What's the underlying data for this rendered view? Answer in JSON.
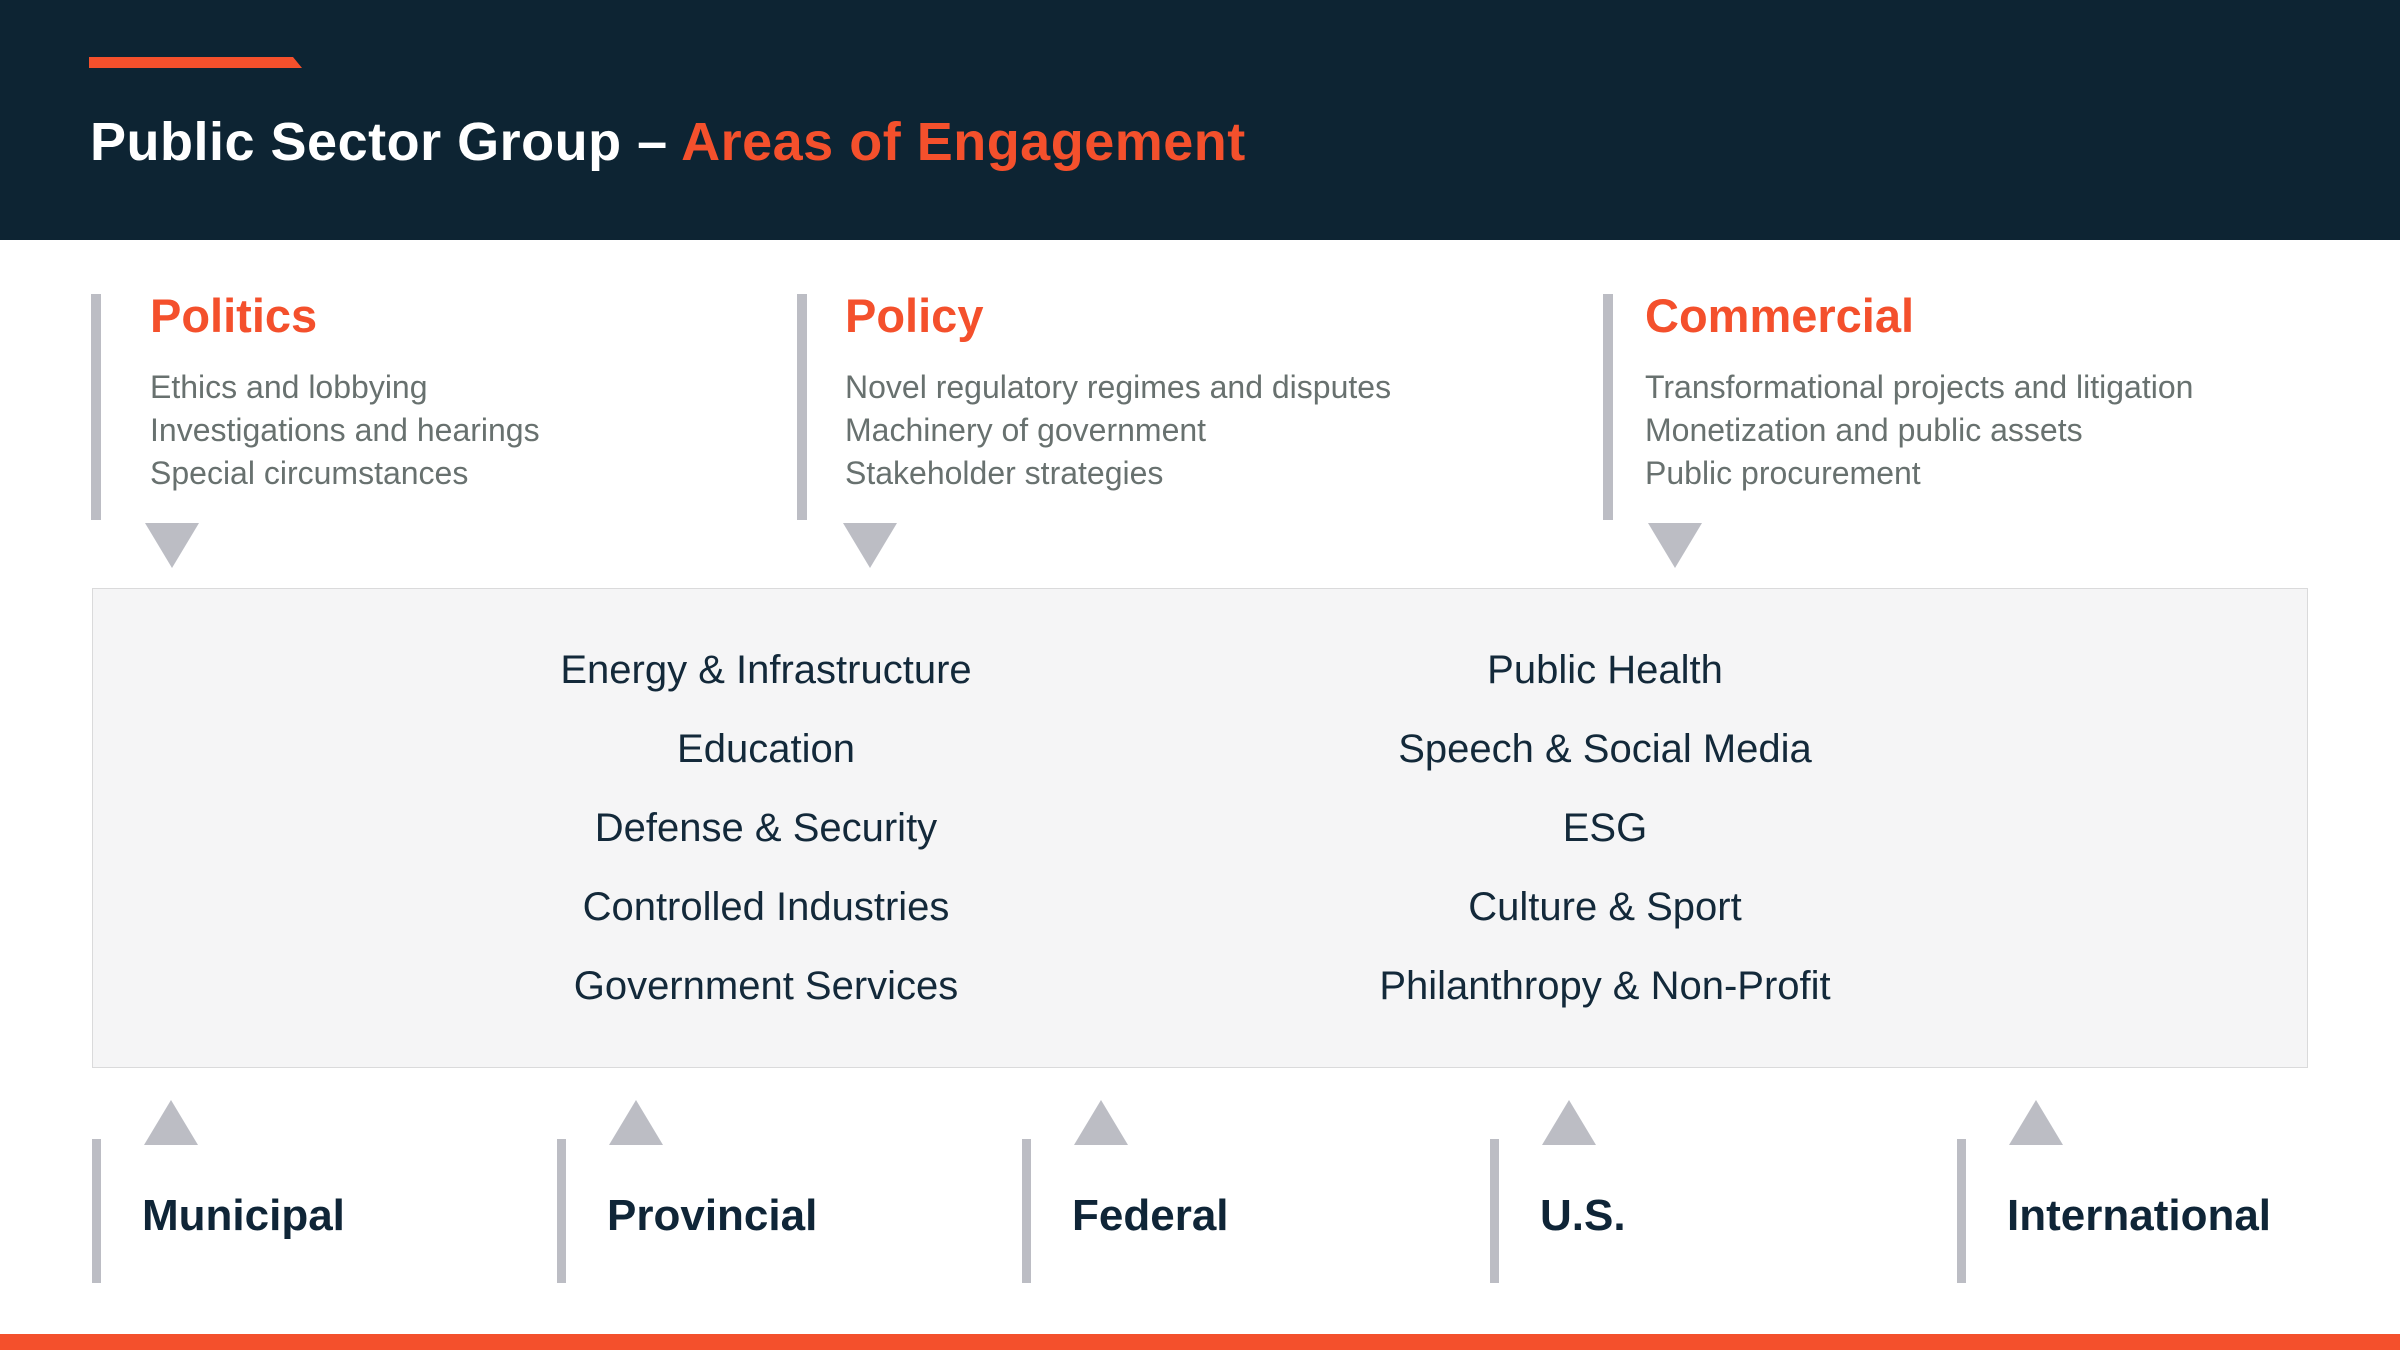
{
  "slide": {
    "title_primary": "Public Sector Group –",
    "title_accent": "Areas of Engagement"
  },
  "colors": {
    "accent_orange": "#F4502C",
    "header_navy": "#0D2433",
    "bullet_gray": "#68716F",
    "shape_gray": "#BCBDC4",
    "text_navy": "#13293A",
    "panel_background": "#F5F5F6"
  },
  "engagement_columns": [
    {
      "title": "Politics",
      "items": [
        "Ethics and lobbying",
        "Investigations and hearings",
        "Special circumstances"
      ]
    },
    {
      "title": "Policy",
      "items": [
        "Novel regulatory regimes and disputes",
        "Machinery of government",
        "Stakeholder strategies"
      ]
    },
    {
      "title": "Commercial",
      "items": [
        "Transformational projects and litigation",
        "Monetization and public assets",
        "Public procurement"
      ]
    }
  ],
  "practice_areas": {
    "left": [
      "Energy & Infrastructure",
      "Education",
      "Defense & Security",
      "Controlled Industries",
      "Government Services"
    ],
    "right": [
      "Public Health",
      "Speech & Social Media",
      "ESG",
      "Culture & Sport",
      "Philanthropy & Non-Profit"
    ]
  },
  "jurisdictions": [
    "Municipal",
    "Provincial",
    "Federal",
    "U.S.",
    "International"
  ]
}
